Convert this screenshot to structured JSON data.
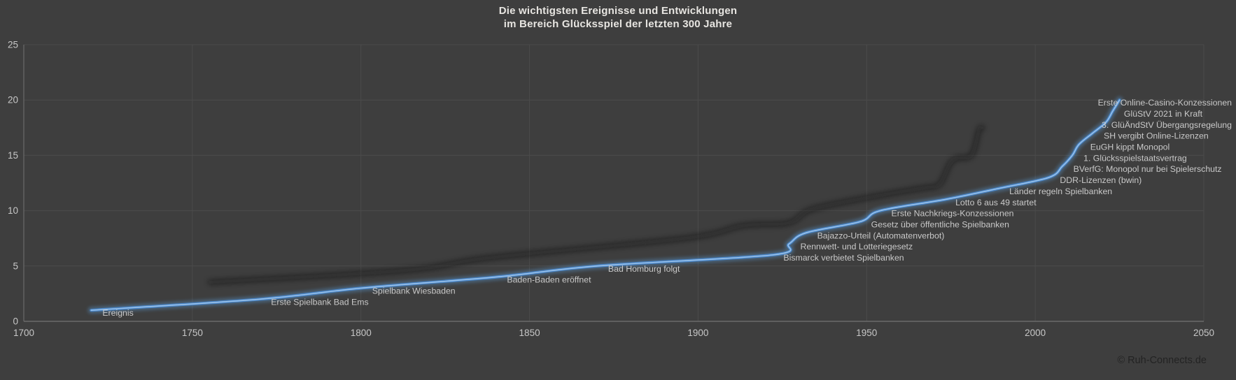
{
  "title": {
    "line1": "Die wichtigsten Ereignisse und Entwicklungen",
    "line2": "im Bereich Glücksspiel der letzten 300 Jahre"
  },
  "watermark": "© Ruh-Connects.de",
  "colors": {
    "background": "#3e3e3e",
    "gridline": "#4b4b4b",
    "axis_line": "#6a6a6a",
    "tick_text": "#c7c7c7",
    "title_text": "#e7e5e1",
    "label_text": "#c9c9c9",
    "line_core": "#4a86c8",
    "line_glow": "#5b9bd5",
    "line_highlight": "#a3c9ed",
    "shadow": "#0d0d0d",
    "watermark_text": "#232323"
  },
  "chart_data": {
    "type": "line",
    "series_name": "Ereignis",
    "smoothed": true,
    "grid": true,
    "legend_position": "none",
    "xlabel": "",
    "ylabel": "",
    "x_axis": {
      "min": 1700,
      "max": 2050,
      "ticks": [
        1700,
        1750,
        1800,
        1850,
        1900,
        1950,
        2000,
        2050
      ]
    },
    "y_axis": {
      "min": 0,
      "max": 25,
      "ticks": [
        0,
        5,
        10,
        15,
        20,
        25
      ]
    },
    "points": [
      {
        "label": "Ereignis",
        "year": 1720,
        "value": 1
      },
      {
        "label": "Erste Spielbank Bad Ems",
        "year": 1770,
        "value": 2
      },
      {
        "label": "Spielbank Wiesbaden",
        "year": 1800,
        "value": 3
      },
      {
        "label": "Baden-Baden eröffnet",
        "year": 1840,
        "value": 4
      },
      {
        "label": "Bad Homburg folgt",
        "year": 1870,
        "value": 5
      },
      {
        "label": "Bismarck verbietet Spielbanken",
        "year": 1922,
        "value": 6
      },
      {
        "label": "Rennwett- und Lotteriegesetz",
        "year": 1927,
        "value": 7
      },
      {
        "label": "Bajazzo-Urteil (Automatenverbot)",
        "year": 1932,
        "value": 8
      },
      {
        "label": "Gesetz über öffentliche Spielbanken",
        "year": 1948,
        "value": 9
      },
      {
        "label": "Erste Nachkriegs-Konzessionen",
        "year": 1954,
        "value": 10
      },
      {
        "label": "Lotto 6 aus 49 startet",
        "year": 1973,
        "value": 11
      },
      {
        "label": "Länder regeln Spielbanken",
        "year": 1989,
        "value": 12
      },
      {
        "label": "DDR-Lizenzen (bwin)",
        "year": 2004,
        "value": 13
      },
      {
        "label": "BVerfG: Monopol nur bei Spielerschutz",
        "year": 2008,
        "value": 14
      },
      {
        "label": "1. Glücksspielstaatsvertrag",
        "year": 2011,
        "value": 15
      },
      {
        "label": "EuGH kippt Monopol",
        "year": 2013,
        "value": 16
      },
      {
        "label": "SH vergibt Online-Lizenzen",
        "year": 2017,
        "value": 17
      },
      {
        "label": "3. GlüÄndStV Übergangsregelung",
        "year": 2021,
        "value": 18
      },
      {
        "label": "GlüStV 2021 in Kraft",
        "year": 2023,
        "value": 19
      },
      {
        "label": "Erste Online-Casino-Konzessionen",
        "year": 2025,
        "value": 20
      }
    ]
  }
}
